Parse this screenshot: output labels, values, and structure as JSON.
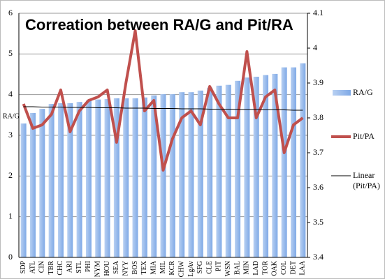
{
  "chart_data": {
    "type": "bar_line",
    "title": "Correation between RA/G and Pit/RA",
    "ylabel": "RA/G",
    "categories": [
      "SDP",
      "ATL",
      "CIN",
      "TBR",
      "CHC",
      "ARI",
      "STL",
      "PHI",
      "NYM",
      "HOU",
      "SEA",
      "NYY",
      "BOS",
      "TEX",
      "MIA",
      "MIL",
      "KCR",
      "CHW",
      "LgAv",
      "SFG",
      "CLE",
      "PIT",
      "WSN",
      "BAL",
      "MIN",
      "LAD",
      "TOR",
      "OAK",
      "COL",
      "DET",
      "LAA"
    ],
    "series": [
      {
        "name": "RA/G",
        "type": "bar",
        "color": "#7fa9e6",
        "values": [
          3.29,
          3.55,
          3.65,
          3.77,
          3.79,
          3.79,
          3.82,
          3.86,
          3.88,
          3.89,
          3.91,
          3.91,
          3.91,
          3.93,
          3.98,
          4.01,
          4.01,
          4.06,
          4.06,
          4.1,
          4.17,
          4.22,
          4.24,
          4.34,
          4.42,
          4.44,
          4.48,
          4.51,
          4.67,
          4.67,
          4.77
        ]
      },
      {
        "name": "Pit/PA",
        "type": "line",
        "axis": "y2",
        "color": "#c0504d",
        "values": [
          3.84,
          3.77,
          3.78,
          3.81,
          3.88,
          3.76,
          3.82,
          3.85,
          3.86,
          3.88,
          3.73,
          3.9,
          4.05,
          3.82,
          3.85,
          3.65,
          3.74,
          3.8,
          3.82,
          3.78,
          3.89,
          3.84,
          3.8,
          3.8,
          3.99,
          3.8,
          3.86,
          3.88,
          3.7,
          3.78,
          3.8
        ]
      },
      {
        "name": "Linear (Pit/PA)",
        "type": "line",
        "axis": "y2",
        "color": "#000000",
        "values": [
          3.832,
          3.832,
          3.831,
          3.831,
          3.831,
          3.83,
          3.83,
          3.83,
          3.829,
          3.829,
          3.829,
          3.828,
          3.828,
          3.828,
          3.827,
          3.827,
          3.827,
          3.826,
          3.826,
          3.826,
          3.825,
          3.825,
          3.825,
          3.824,
          3.824,
          3.824,
          3.823,
          3.823,
          3.823,
          3.822,
          3.822
        ]
      }
    ],
    "ylim": [
      0,
      6
    ],
    "yticks": [
      0,
      1,
      2,
      3,
      4,
      5,
      6
    ],
    "y2lim": [
      3.4,
      4.1
    ],
    "y2ticks": [
      3.4,
      3.5,
      3.6,
      3.7,
      3.8,
      3.9,
      4,
      4.1
    ],
    "grid": true
  }
}
